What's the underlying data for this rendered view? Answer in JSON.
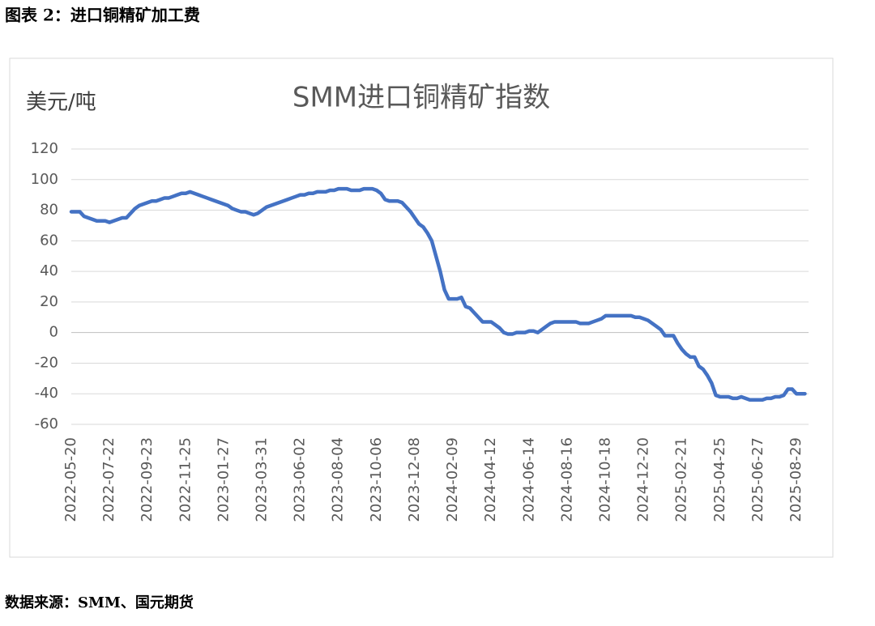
{
  "header": {
    "title": "图表 2：进口铜精矿加工费"
  },
  "source": "数据来源：SMM、国元期货",
  "chart_data": {
    "type": "line",
    "title": "SMM进口铜精矿指数",
    "y_label": "美元/吨",
    "categories": [
      "2022-05-20",
      null,
      null,
      null,
      null,
      null,
      null,
      null,
      null,
      "2022-07-22",
      null,
      null,
      null,
      null,
      null,
      null,
      null,
      null,
      "2022-09-23",
      null,
      null,
      null,
      null,
      null,
      null,
      null,
      null,
      "2022-11-25",
      null,
      null,
      null,
      null,
      null,
      null,
      null,
      null,
      "2023-01-27",
      null,
      null,
      null,
      null,
      null,
      null,
      null,
      null,
      "2023-03-31",
      null,
      null,
      null,
      null,
      null,
      null,
      null,
      null,
      "2023-06-02",
      null,
      null,
      null,
      null,
      null,
      null,
      null,
      null,
      "2023-08-04",
      null,
      null,
      null,
      null,
      null,
      null,
      null,
      null,
      "2023-10-06",
      null,
      null,
      null,
      null,
      null,
      null,
      null,
      null,
      "2023-12-08",
      null,
      null,
      null,
      null,
      null,
      null,
      null,
      null,
      "2024-02-09",
      null,
      null,
      null,
      null,
      null,
      null,
      null,
      null,
      "2024-04-12",
      null,
      null,
      null,
      null,
      null,
      null,
      null,
      null,
      "2024-06-14",
      null,
      null,
      null,
      null,
      null,
      null,
      null,
      null,
      "2024-08-16",
      null,
      null,
      null,
      null,
      null,
      null,
      null,
      null,
      "2024-10-18",
      null,
      null,
      null,
      null,
      null,
      null,
      null,
      null,
      "2024-12-20",
      null,
      null,
      null,
      null,
      null,
      null,
      null,
      null,
      "2025-02-21",
      null,
      null,
      null,
      null,
      null,
      null,
      null,
      null,
      "2025-04-25",
      null,
      null,
      null,
      null,
      null,
      null,
      null,
      null,
      "2025-06-27",
      null,
      null,
      null,
      null,
      null,
      null,
      null,
      null,
      "2025-08-29",
      null,
      null
    ],
    "series": [
      {
        "name": "SMM进口铜精矿指数",
        "color": "#4472c4",
        "values": [
          79,
          79,
          79,
          76,
          75,
          74,
          73,
          73,
          73,
          72,
          73,
          74,
          75,
          75,
          78,
          81,
          83,
          84,
          85,
          86,
          86,
          87,
          88,
          88,
          89,
          90,
          91,
          91,
          92,
          91,
          90,
          89,
          88,
          87,
          86,
          85,
          84,
          83,
          81,
          80,
          79,
          79,
          78,
          77,
          78,
          80,
          82,
          83,
          84,
          85,
          86,
          87,
          88,
          89,
          90,
          90,
          91,
          91,
          92,
          92,
          92,
          93,
          93,
          94,
          94,
          94,
          93,
          93,
          93,
          94,
          94,
          94,
          93,
          91,
          87,
          86,
          86,
          86,
          85,
          82,
          79,
          75,
          71,
          69,
          65,
          60,
          50,
          40,
          28,
          22,
          22,
          22,
          23,
          17,
          16,
          13,
          10,
          7,
          7,
          7,
          5,
          3,
          0,
          -1,
          -1,
          0,
          0,
          0,
          1,
          1,
          0,
          2,
          4,
          6,
          7,
          7,
          7,
          7,
          7,
          7,
          6,
          6,
          6,
          7,
          8,
          9,
          11,
          11,
          11,
          11,
          11,
          11,
          11,
          10,
          10,
          9,
          8,
          6,
          4,
          2,
          -2,
          -2,
          -2,
          -7,
          -11,
          -14,
          -16,
          -16,
          -22,
          -24,
          -28,
          -33,
          -41,
          -42,
          -42,
          -42,
          -43,
          -43,
          -42,
          -43,
          -44,
          -44,
          -44,
          -44,
          -43,
          -43,
          -42,
          -42,
          -41,
          -37,
          -37,
          -40,
          -40,
          -40
        ]
      }
    ],
    "ylim": [
      -60,
      120
    ],
    "yticks": [
      -60,
      -40,
      -20,
      0,
      20,
      40,
      60,
      80,
      100,
      120
    ],
    "grid": true
  }
}
